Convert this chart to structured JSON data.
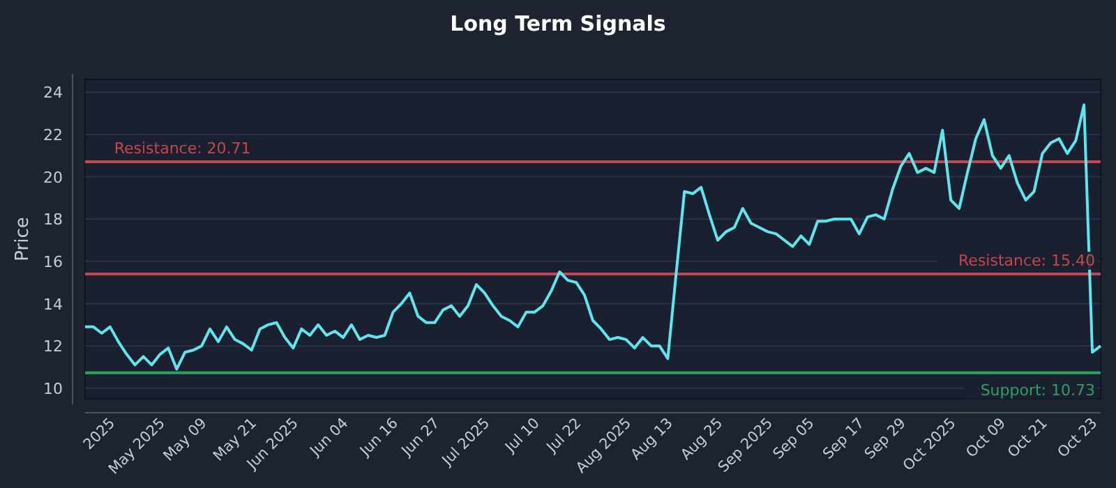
{
  "chart_data": {
    "type": "line",
    "title": "Long Term Signals",
    "ylabel": "Price",
    "categories": [
      null,
      null,
      null,
      "2025",
      null,
      null,
      null,
      null,
      null,
      "May 2025",
      null,
      null,
      null,
      null,
      "May 09",
      null,
      null,
      null,
      null,
      null,
      "May 21",
      null,
      null,
      null,
      null,
      "Jun 2025",
      null,
      null,
      null,
      null,
      null,
      "Jun 04",
      null,
      null,
      null,
      null,
      null,
      "Jun 16",
      null,
      null,
      null,
      null,
      "Jun 27",
      null,
      null,
      null,
      null,
      null,
      "Jul 2025",
      null,
      null,
      null,
      null,
      null,
      "Jul 10",
      null,
      null,
      null,
      null,
      "Jul 22",
      null,
      null,
      null,
      null,
      null,
      "Aug 2025",
      null,
      null,
      null,
      null,
      "Aug 13",
      null,
      null,
      null,
      null,
      null,
      "Aug 25",
      null,
      null,
      null,
      null,
      null,
      "Sep 2025",
      null,
      null,
      null,
      null,
      "Sep 05",
      null,
      null,
      null,
      null,
      null,
      "Sep 17",
      null,
      null,
      null,
      null,
      "Sep 29",
      null,
      null,
      null,
      null,
      null,
      "Oct 2025",
      null,
      null,
      null,
      null,
      null,
      "Oct 09",
      null,
      null,
      null,
      null,
      "Oct 21",
      null,
      null,
      null,
      null,
      null,
      "Oct 23",
      null
    ],
    "series": [
      {
        "color": "#5ee6ee",
        "values": [
          12.9,
          12.9,
          12.6,
          12.9,
          12.2,
          11.6,
          11.1,
          11.5,
          11.1,
          11.6,
          11.9,
          10.9,
          11.7,
          11.8,
          12.0,
          12.8,
          12.2,
          12.9,
          12.3,
          12.1,
          11.8,
          12.8,
          13.0,
          13.1,
          12.4,
          11.9,
          12.8,
          12.5,
          13.0,
          12.5,
          12.7,
          12.4,
          13.0,
          12.3,
          12.5,
          12.4,
          12.5,
          13.6,
          14.0,
          14.5,
          13.4,
          13.1,
          13.1,
          13.7,
          13.9,
          13.4,
          13.9,
          14.9,
          14.5,
          13.9,
          13.4,
          13.2,
          12.9,
          13.6,
          13.6,
          13.9,
          14.6,
          15.5,
          15.1,
          15.0,
          14.4,
          13.2,
          12.8,
          12.3,
          12.4,
          12.3,
          11.9,
          12.4,
          12.0,
          12.0,
          11.4,
          15.4,
          19.3,
          19.2,
          19.5,
          18.2,
          17.0,
          17.4,
          17.6,
          18.5,
          17.8,
          17.6,
          17.4,
          17.3,
          17.0,
          16.7,
          17.2,
          16.8,
          17.9,
          17.9,
          18.0,
          18.0,
          18.0,
          17.3,
          18.1,
          18.2,
          18.0,
          19.4,
          20.5,
          21.1,
          20.2,
          20.4,
          20.2,
          22.2,
          18.9,
          18.5,
          20.2,
          21.8,
          22.7,
          21.0,
          20.4,
          21.0,
          19.7,
          18.9,
          19.3,
          21.1,
          21.6,
          21.8,
          21.1,
          21.7,
          23.4,
          11.7,
          12.0
        ]
      }
    ],
    "ylim": [
      9.5,
      24.6
    ],
    "yticks": [
      10,
      12,
      14,
      16,
      18,
      20,
      22,
      24
    ],
    "grid": "y",
    "line_style": "solid",
    "marker": "none",
    "ref_lines": [
      {
        "axis": "y",
        "value": 20.71,
        "label": "Resistance: 20.71",
        "color": "#c5464c"
      },
      {
        "axis": "y",
        "value": 15.4,
        "label": "Resistance: 15.40",
        "color": "#c5464c"
      },
      {
        "axis": "y",
        "value": 10.73,
        "label": "Support: 10.73",
        "color": "#2ea05c"
      }
    ]
  }
}
